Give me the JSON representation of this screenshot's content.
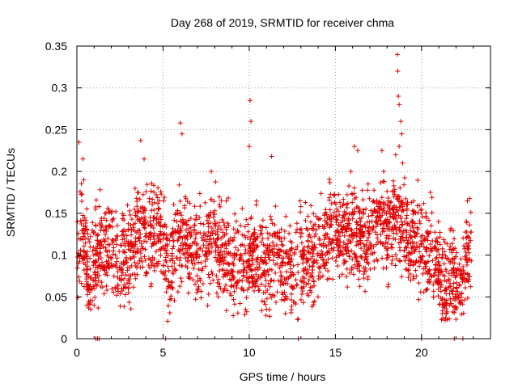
{
  "chart_data": {
    "type": "scatter",
    "title": "Day 268 of 2019, SRMTID for receiver chma",
    "xlabel": "GPS time / hours",
    "ylabel": "SRMTID / TECUs",
    "xlim": [
      0,
      24
    ],
    "ylim": [
      0,
      0.35
    ],
    "xticks": [
      "0",
      "5",
      "10",
      "15",
      "20"
    ],
    "yticks": [
      "0",
      "0.05",
      "0.1",
      "0.15",
      "0.2",
      "0.25",
      "0.3",
      "0.35"
    ],
    "grid": true,
    "legend": "none",
    "marker": "+",
    "series": [
      {
        "name": "SRMTID",
        "color": "#e00000",
        "baseline": [
          [
            0.0,
            0.1
          ],
          [
            0.3,
            0.13
          ],
          [
            0.7,
            0.07
          ],
          [
            1.0,
            0.09
          ],
          [
            1.5,
            0.11
          ],
          [
            2.0,
            0.11
          ],
          [
            2.5,
            0.09
          ],
          [
            3.0,
            0.1
          ],
          [
            3.5,
            0.13
          ],
          [
            4.0,
            0.13
          ],
          [
            4.5,
            0.12
          ],
          [
            5.0,
            0.13
          ],
          [
            5.3,
            0.07
          ],
          [
            5.8,
            0.12
          ],
          [
            6.3,
            0.12
          ],
          [
            7.0,
            0.1
          ],
          [
            7.5,
            0.1
          ],
          [
            8.0,
            0.13
          ],
          [
            8.5,
            0.1
          ],
          [
            9.0,
            0.09
          ],
          [
            9.5,
            0.09
          ],
          [
            10.0,
            0.1
          ],
          [
            10.5,
            0.1
          ],
          [
            11.0,
            0.09
          ],
          [
            11.5,
            0.1
          ],
          [
            12.0,
            0.09
          ],
          [
            12.5,
            0.08
          ],
          [
            13.0,
            0.09
          ],
          [
            13.5,
            0.1
          ],
          [
            14.0,
            0.11
          ],
          [
            14.5,
            0.12
          ],
          [
            15.0,
            0.13
          ],
          [
            15.5,
            0.12
          ],
          [
            16.0,
            0.13
          ],
          [
            16.5,
            0.12
          ],
          [
            17.0,
            0.12
          ],
          [
            17.5,
            0.14
          ],
          [
            18.0,
            0.13
          ],
          [
            18.5,
            0.15
          ],
          [
            19.0,
            0.12
          ],
          [
            19.5,
            0.12
          ],
          [
            20.0,
            0.11
          ],
          [
            20.5,
            0.11
          ],
          [
            21.0,
            0.09
          ],
          [
            21.3,
            0.06
          ],
          [
            21.7,
            0.08
          ],
          [
            22.2,
            0.07
          ],
          [
            22.6,
            0.1
          ],
          [
            22.9,
            0.1
          ]
        ],
        "spikes": [
          [
            0.12,
            0.235
          ],
          [
            0.35,
            0.215
          ],
          [
            0.4,
            0.19
          ],
          [
            3.7,
            0.237
          ],
          [
            3.9,
            0.215
          ],
          [
            6.0,
            0.258
          ],
          [
            6.1,
            0.245
          ],
          [
            7.8,
            0.2
          ],
          [
            10.05,
            0.285
          ],
          [
            10.1,
            0.26
          ],
          [
            10.0,
            0.23
          ],
          [
            11.3,
            0.218
          ],
          [
            16.1,
            0.23
          ],
          [
            16.3,
            0.225
          ],
          [
            15.9,
            0.2
          ],
          [
            17.7,
            0.225
          ],
          [
            17.8,
            0.2
          ],
          [
            18.6,
            0.34
          ],
          [
            18.62,
            0.32
          ],
          [
            18.65,
            0.29
          ],
          [
            18.7,
            0.28
          ],
          [
            18.8,
            0.26
          ],
          [
            18.85,
            0.245
          ],
          [
            18.7,
            0.23
          ],
          [
            18.9,
            0.21
          ],
          [
            18.5,
            0.22
          ],
          [
            16.9,
            0.185
          ],
          [
            12.1,
            0.03
          ],
          [
            11.0,
            0.035
          ],
          [
            21.4,
            0.025
          ],
          [
            21.2,
            0.03
          ],
          [
            0.8,
            0.035
          ],
          [
            1.0,
            0.04
          ],
          [
            8.2,
            0.05
          ],
          [
            13.8,
            0.045
          ]
        ],
        "zero_points": [
          1.1,
          1.2,
          1.3,
          5.15,
          12.85,
          20.0,
          21.9,
          22.4
        ],
        "gaps": [
          [
            0.8,
            0.9
          ]
        ]
      }
    ]
  }
}
